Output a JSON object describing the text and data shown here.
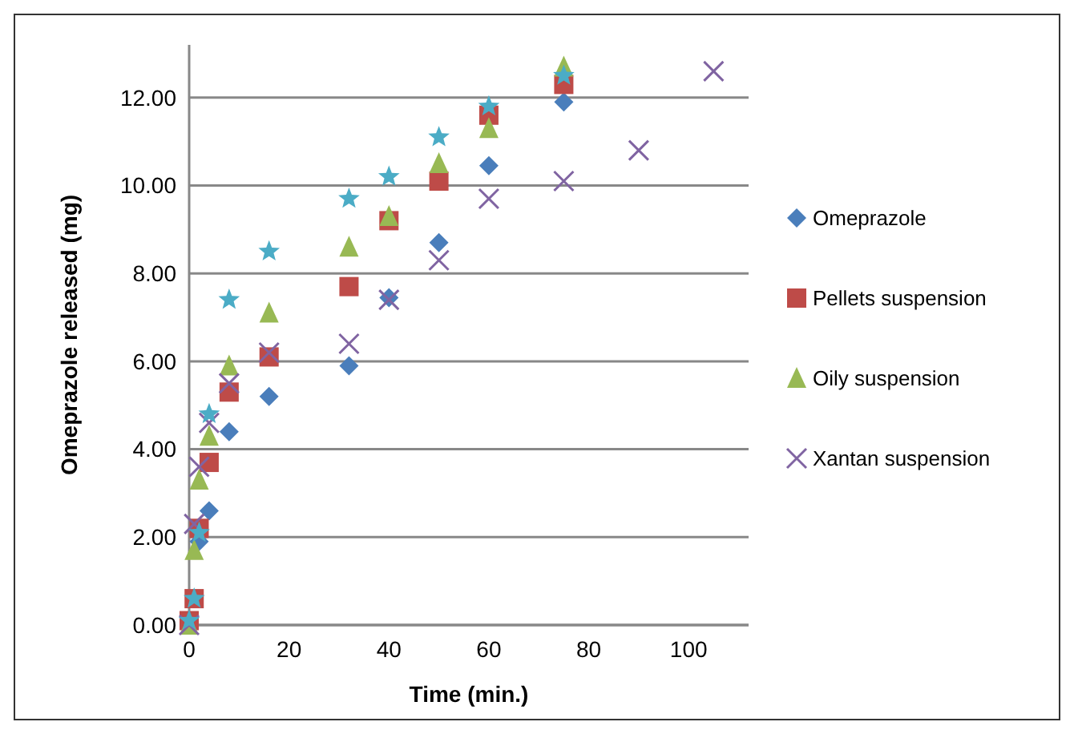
{
  "chart_data": {
    "type": "scatter",
    "xlabel": "Time (min.)",
    "ylabel": "Omeprazole released (mg)",
    "xlim": [
      0,
      112
    ],
    "xticks": [
      0,
      20,
      40,
      60,
      80,
      100
    ],
    "ylim": [
      0,
      13.2
    ],
    "yticks": [
      {
        "value": 0,
        "label": "0.00"
      },
      {
        "value": 2,
        "label": "2.00"
      },
      {
        "value": 4,
        "label": "4.00"
      },
      {
        "value": 6,
        "label": "6.00"
      },
      {
        "value": 8,
        "label": "8.00"
      },
      {
        "value": 10,
        "label": "10.00"
      },
      {
        "value": 12,
        "label": "12.00"
      }
    ],
    "grid": "y",
    "legend": "right",
    "series": [
      {
        "name": "Omeprazole",
        "color": "#4a7ebb",
        "marker": "diamond",
        "x": [
          2,
          4,
          8,
          16,
          32,
          40,
          50,
          60,
          75
        ],
        "values": [
          1.9,
          2.6,
          4.4,
          5.2,
          5.9,
          7.45,
          8.7,
          10.45,
          11.9
        ]
      },
      {
        "name": "Pellets suspension",
        "color": "#be4b48",
        "marker": "square",
        "x": [
          0,
          1,
          2,
          4,
          8,
          16,
          32,
          40,
          50,
          60,
          75
        ],
        "values": [
          0.1,
          0.6,
          2.2,
          3.7,
          5.3,
          6.1,
          7.7,
          9.2,
          10.1,
          11.6,
          12.3
        ]
      },
      {
        "name": "Oily suspension",
        "color": "#98b954",
        "marker": "triangle",
        "x": [
          0,
          1,
          2,
          4,
          8,
          16,
          32,
          40,
          50,
          60,
          75
        ],
        "values": [
          0,
          1.7,
          3.3,
          4.3,
          5.9,
          7.1,
          8.6,
          9.3,
          10.5,
          11.3,
          12.7
        ]
      },
      {
        "name": "Xantan suspension",
        "color": "#8064a2",
        "marker": "cross",
        "x": [
          0,
          1,
          2,
          4,
          8,
          16,
          32,
          40,
          50,
          60,
          75,
          90,
          105
        ],
        "values": [
          0,
          2.3,
          3.6,
          4.6,
          5.5,
          6.2,
          6.4,
          7.4,
          8.3,
          9.7,
          10.1,
          10.8,
          12.6
        ]
      },
      {
        "color": "#4bacc6",
        "marker": "star",
        "x": [
          0,
          1,
          2,
          4,
          8,
          16,
          32,
          40,
          50,
          60,
          75
        ],
        "values": [
          0.1,
          0.6,
          2.1,
          4.8,
          7.4,
          8.5,
          9.7,
          10.2,
          11.1,
          11.8,
          12.5
        ]
      }
    ]
  }
}
